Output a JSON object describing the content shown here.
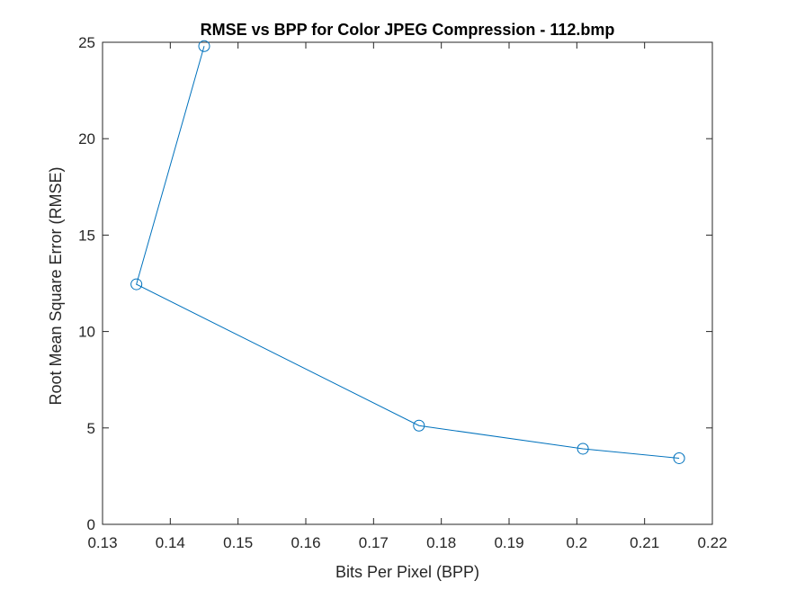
{
  "chart_data": {
    "type": "line",
    "title": "RMSE vs BPP for Color JPEG Compression - 112.bmp",
    "xlabel": "Bits Per Pixel (BPP)",
    "ylabel": "Root Mean Square Error (RMSE)",
    "xlim": [
      0.13,
      0.22
    ],
    "ylim": [
      0,
      25
    ],
    "xticks": [
      0.13,
      0.14,
      0.15,
      0.16,
      0.17,
      0.18,
      0.19,
      0.2,
      0.21,
      0.22
    ],
    "xtick_labels": [
      "0.13",
      "0.14",
      "0.15",
      "0.16",
      "0.17",
      "0.18",
      "0.19",
      "0.2",
      "0.21",
      "0.22"
    ],
    "yticks": [
      0,
      5,
      10,
      15,
      20,
      25
    ],
    "ytick_labels": [
      "0",
      "5",
      "10",
      "15",
      "20",
      "25"
    ],
    "grid": false,
    "series": [
      {
        "color": "#0072BD",
        "marker": "circle",
        "x": [
          0.145,
          0.135,
          0.1767,
          0.2009,
          0.2151
        ],
        "y": [
          24.8,
          12.45,
          5.12,
          3.92,
          3.43
        ]
      }
    ]
  }
}
